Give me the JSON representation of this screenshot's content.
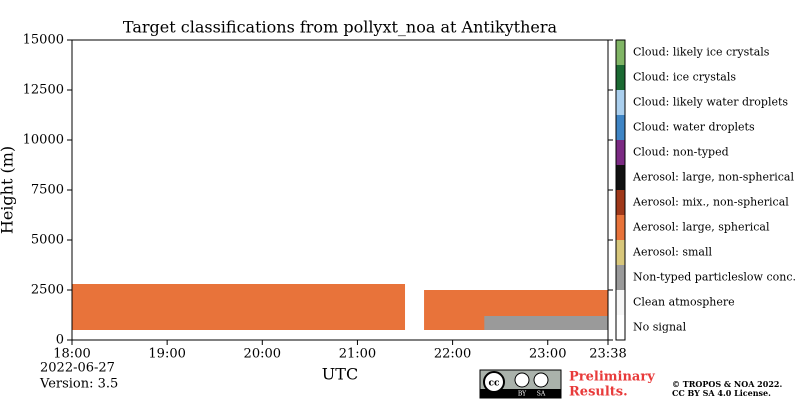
{
  "chart_data": {
    "type": "heatmap",
    "title": "Target classifications from pollyxt_noa at Antikythera",
    "ylabel": "Height (m)",
    "xlabel": "UTC",
    "ylim": [
      0,
      15000
    ],
    "yticks": [
      0,
      2500,
      5000,
      7500,
      10000,
      12500,
      15000
    ],
    "xlim": [
      1080,
      1418
    ],
    "xticks": [
      {
        "value": 1080,
        "label": "18:00"
      },
      {
        "value": 1140,
        "label": "19:00"
      },
      {
        "value": 1200,
        "label": "20:00"
      },
      {
        "value": 1260,
        "label": "21:00"
      },
      {
        "value": 1320,
        "label": "22:00"
      },
      {
        "value": 1380,
        "label": "23:00"
      },
      {
        "value": 1418,
        "label": "23:38"
      }
    ],
    "classes": [
      {
        "name": "No signal",
        "color": "#ffffff"
      },
      {
        "name": "Clean atmosphere",
        "color": "#f7f7f7"
      },
      {
        "name": "Non-typed particleslow conc.",
        "color": "#9a9a9a"
      },
      {
        "name": "Aerosol: small",
        "color": "#d8c77b"
      },
      {
        "name": "Aerosol: large, spherical",
        "color": "#e8733a"
      },
      {
        "name": "Aerosol: mix., non-spherical",
        "color": "#a0391a"
      },
      {
        "name": "Aerosol: large, non-spherical",
        "color": "#111111"
      },
      {
        "name": "Cloud: non-typed",
        "color": "#7b2a83"
      },
      {
        "name": "Cloud: water droplets",
        "color": "#3f85c5"
      },
      {
        "name": "Cloud: likely water droplets",
        "color": "#aacfee"
      },
      {
        "name": "Cloud: ice crystals",
        "color": "#1b6a33"
      },
      {
        "name": "Cloud: likely ice crystals",
        "color": "#80b565"
      }
    ],
    "regions": [
      {
        "class": 4,
        "x": [
          1080,
          1290
        ],
        "y": [
          500,
          2800
        ]
      },
      {
        "class": 4,
        "x": [
          1302,
          1418
        ],
        "y": [
          500,
          2500
        ]
      },
      {
        "class": 2,
        "x": [
          1340,
          1418
        ],
        "y": [
          500,
          1200
        ]
      }
    ],
    "date": "2022-06-27",
    "version": "Version: 3.5",
    "badge": [
      "cc",
      "BY",
      "SA"
    ],
    "preliminary": [
      "Preliminary",
      "Results."
    ],
    "copyright": [
      "© TROPOS & NOA 2022.",
      "CC BY SA 4.0 License."
    ]
  }
}
